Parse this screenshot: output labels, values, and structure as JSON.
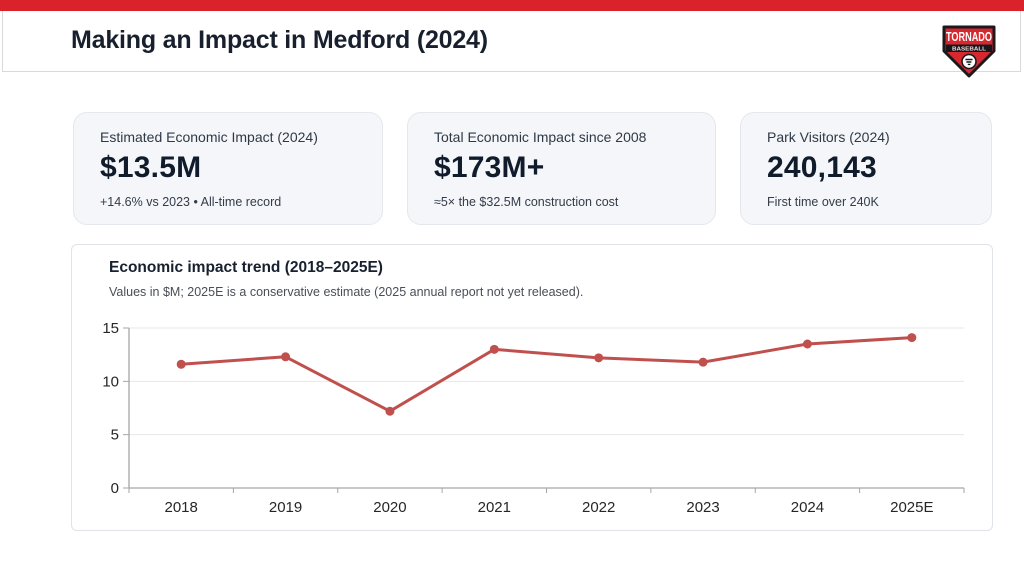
{
  "colors": {
    "accent_red": "#d92229",
    "logo_red": "#d7282f",
    "line": "#c0504d",
    "grid": "#e7e7e7",
    "axis": "#a6a6a6"
  },
  "header": {
    "title": "Making an Impact in Medford (2024)"
  },
  "logo": {
    "top": "TORNADO",
    "bottom": "BASEBALL"
  },
  "cards": [
    {
      "label": "Estimated Economic Impact (2024)",
      "value": "$13.5M",
      "note": "+14.6% vs 2023 • All-time record"
    },
    {
      "label": "Total Economic Impact since 2008",
      "value": "$173M+",
      "note": "≈5× the $32.5M construction cost"
    },
    {
      "label": "Park Visitors (2024)",
      "value": "240,143",
      "note": "First time over 240K"
    }
  ],
  "chart_data": {
    "type": "line",
    "title": "Economic impact trend (2018–2025E)",
    "subtitle": "Values in $M; 2025E is a conservative estimate (2025 annual report not yet released).",
    "categories": [
      "2018",
      "2019",
      "2020",
      "2021",
      "2022",
      "2023",
      "2024",
      "2025E"
    ],
    "values": [
      11.6,
      12.3,
      7.2,
      13.0,
      12.2,
      11.8,
      13.5,
      14.1
    ],
    "xlabel": "",
    "ylabel": "",
    "ylim": [
      0,
      15
    ],
    "yticks": [
      0,
      5,
      10,
      15
    ],
    "grid": true,
    "legend": false,
    "line_color": "#c0504d",
    "marker": "circle"
  }
}
